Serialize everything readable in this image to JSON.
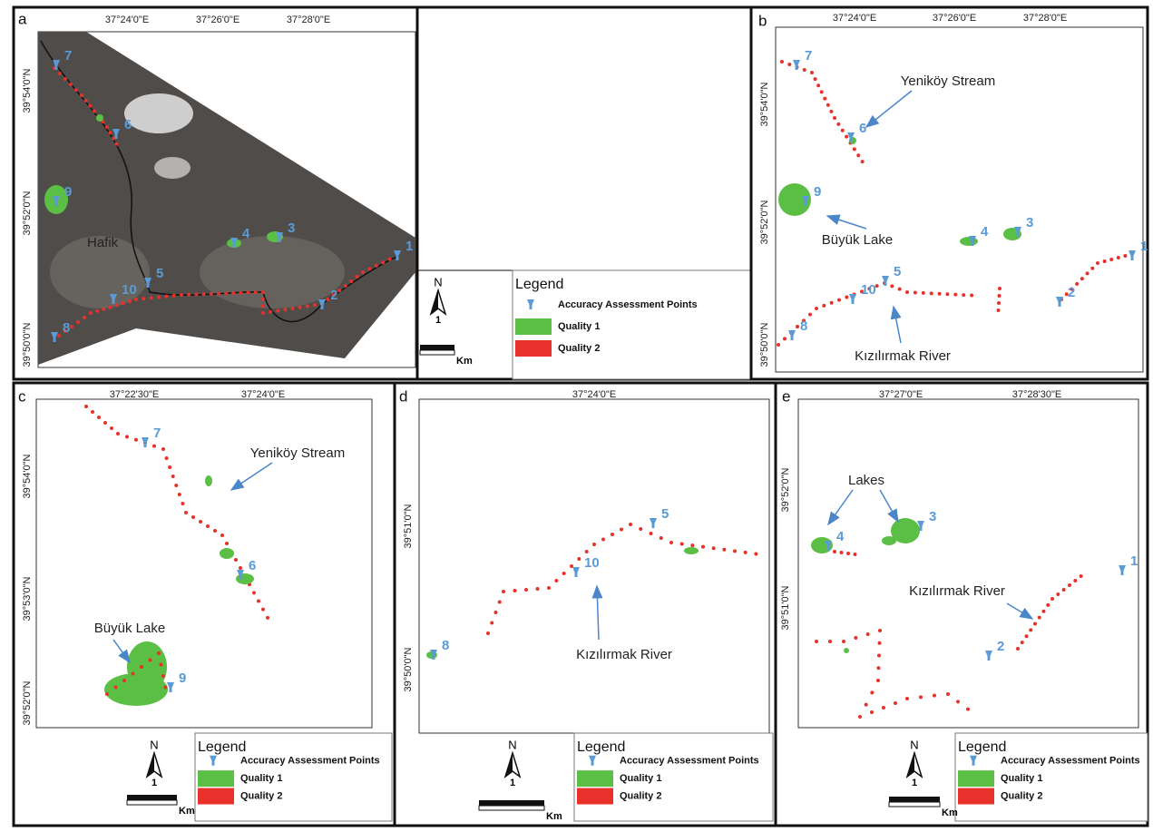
{
  "panels": [
    {
      "letter": "a",
      "lon_labels": [
        "37°24'0\"E",
        "37°26'0\"E",
        "37°28'0\"E"
      ],
      "lat_labels": [
        "39°54'0\"N",
        "39°52'0\"N",
        "39°50'0\"N"
      ],
      "points": [
        "7",
        "6",
        "9",
        "4",
        "3",
        "1",
        "5",
        "10",
        "2",
        "8"
      ],
      "annotations": [
        "Hafik"
      ]
    },
    {
      "letter": "b",
      "lon_labels": [
        "37°24'0\"E",
        "37°26'0\"E",
        "37°28'0\"E"
      ],
      "lat_labels": [
        "39°54'0\"N",
        "39°52'0\"N",
        "39°50'0\"N"
      ],
      "points": [
        "7",
        "6",
        "9",
        "4",
        "3",
        "1",
        "5",
        "10",
        "2",
        "8"
      ],
      "annotations": [
        "Yeniköy Stream",
        "Büyük Lake",
        "Kızılırmak River"
      ]
    },
    {
      "letter": "c",
      "lon_labels": [
        "37°22'30\"E",
        "37°24'0\"E"
      ],
      "lat_labels": [
        "39°54'0\"N",
        "39°53'0\"N",
        "39°52'0\"N"
      ],
      "points": [
        "7",
        "6",
        "9"
      ],
      "annotations": [
        "Yeniköy Stream",
        "Büyük Lake"
      ]
    },
    {
      "letter": "d",
      "lon_labels": [
        "37°24'0\"E"
      ],
      "lat_labels": [
        "39°51'0\"N",
        "39°50'0\"N"
      ],
      "points": [
        "5",
        "10",
        "8"
      ],
      "annotations": [
        "Kızılırmak River"
      ]
    },
    {
      "letter": "e",
      "lon_labels": [
        "37°27'0\"E",
        "37°28'30\"E"
      ],
      "lat_labels": [
        "39°52'0\"N",
        "39°51'0\"N"
      ],
      "points": [
        "4",
        "3",
        "1",
        "2"
      ],
      "annotations": [
        "Lakes",
        "Kızılırmak River"
      ]
    }
  ],
  "legend": {
    "title": "Legend",
    "items": [
      "Accuracy Assessment Points",
      "Quality 1",
      "Quality 2"
    ],
    "north": "N",
    "scale": "1",
    "unit": "Km"
  }
}
